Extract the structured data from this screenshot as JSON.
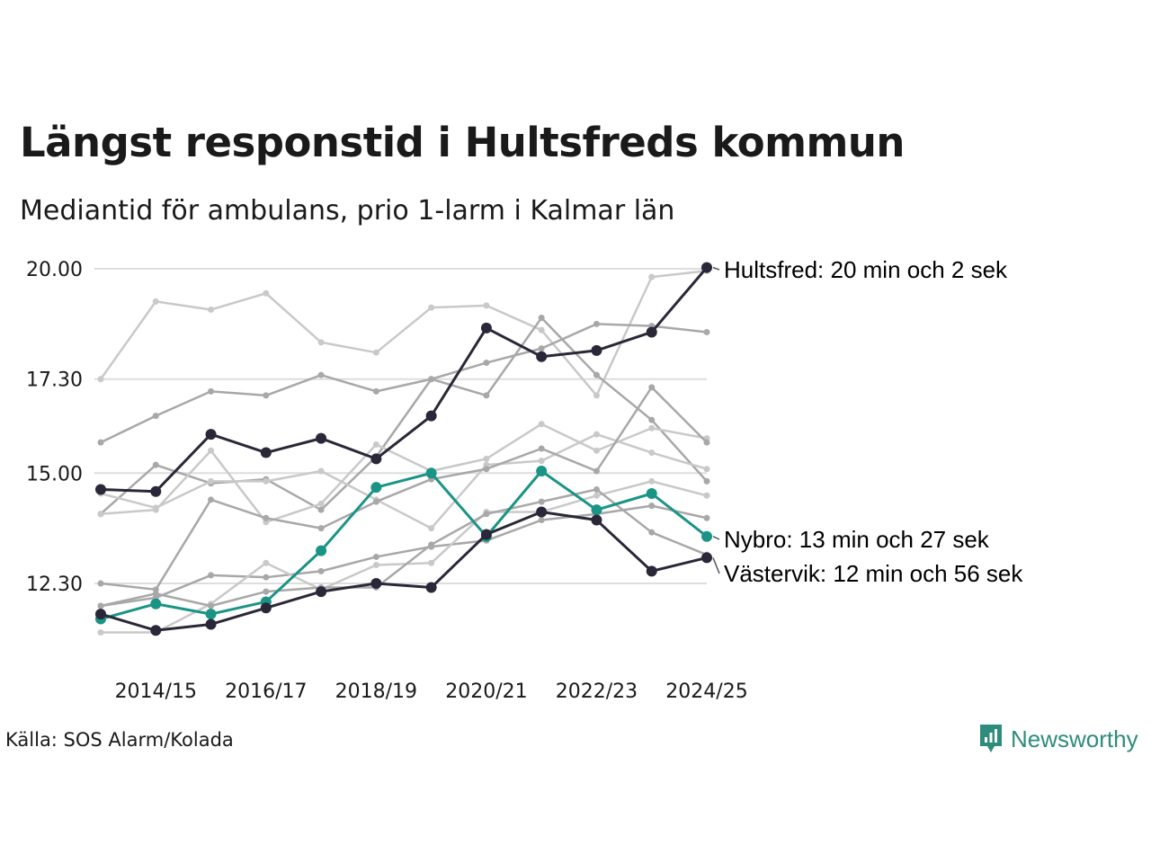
{
  "title": "Längst responstid i Hultsfreds kommun",
  "subtitle": "Mediantid för ambulans, prio 1-larm i Kalmar län",
  "source": "Källa: SOS Alarm/Kolada",
  "brand": "Newsworthy",
  "colors": {
    "hultsfred": "#2a2838",
    "nybro": "#1a9485",
    "vastervik": "#2a2838",
    "grey_light": "#c9c9c9",
    "grey_dark": "#a8a8a8",
    "grid": "#dedede",
    "brand": "#2e8c7c"
  },
  "chart_data": {
    "type": "line",
    "x": [
      "2013/14",
      "2014/15",
      "2015/16",
      "2016/17",
      "2017/18",
      "2018/19",
      "2019/20",
      "2020/21",
      "2021/22",
      "2022/23",
      "2023/24",
      "2024/25"
    ],
    "x_tick_labels": [
      "2014/15",
      "2016/17",
      "2018/19",
      "2020/21",
      "2022/23",
      "2024/25"
    ],
    "y_ticks": [
      12.3,
      15.0,
      17.3,
      20.0
    ],
    "y_tick_labels": [
      "12.30",
      "15.00",
      "17.30",
      "20.00"
    ],
    "ylim": [
      11.0,
      20.0
    ],
    "grid": "horizontal",
    "series": [
      {
        "label": "Hultsfred: 20 min och 2 sek",
        "highlight": "hultsfred",
        "values": [
          14.6,
          14.55,
          15.95,
          15.5,
          15.85,
          15.35,
          16.4,
          18.55,
          17.85,
          18.0,
          18.45,
          20.03
        ]
      },
      {
        "label": "Nybro: 13 min och 27 sek",
        "highlight": "nybro",
        "values": [
          11.43,
          11.8,
          11.55,
          11.85,
          13.1,
          14.65,
          15.0,
          13.45,
          15.05,
          14.1,
          14.5,
          13.45
        ]
      },
      {
        "label": "Västervik: 12 min och 56 sek",
        "highlight": "vastervik",
        "values": [
          11.55,
          11.15,
          11.3,
          11.7,
          12.1,
          12.3,
          12.2,
          13.5,
          14.05,
          13.85,
          12.6,
          12.93
        ]
      },
      {
        "tone": "grey_light",
        "values": [
          17.3,
          19.2,
          19.0,
          19.4,
          18.2,
          17.95,
          19.05,
          19.1,
          18.5,
          16.9,
          19.8,
          19.95
        ]
      },
      {
        "tone": "grey_dark",
        "values": [
          15.75,
          16.4,
          17.0,
          16.9,
          17.4,
          17.0,
          17.3,
          17.7,
          18.05,
          18.65,
          18.6,
          18.45
        ]
      },
      {
        "tone": "grey_dark",
        "values": [
          14.0,
          15.2,
          14.75,
          14.85,
          14.1,
          15.4,
          17.3,
          16.9,
          18.8,
          17.4,
          16.3,
          14.8
        ]
      },
      {
        "tone": "grey_light",
        "values": [
          14.0,
          14.1,
          15.55,
          13.8,
          14.25,
          15.7,
          15.05,
          15.35,
          16.2,
          15.55,
          16.1,
          15.85
        ]
      },
      {
        "tone": "grey_light",
        "values": [
          14.5,
          14.15,
          14.8,
          14.8,
          15.05,
          14.35,
          13.65,
          15.2,
          15.3,
          15.95,
          15.5,
          15.1
        ]
      },
      {
        "tone": "grey_dark",
        "values": [
          12.3,
          12.15,
          14.35,
          13.9,
          13.65,
          14.3,
          14.85,
          15.1,
          15.6,
          15.05,
          17.1,
          15.75
        ]
      },
      {
        "tone": "grey_dark",
        "values": [
          11.75,
          11.95,
          12.5,
          12.45,
          12.6,
          12.95,
          13.2,
          13.35,
          13.85,
          14.0,
          14.2,
          13.9
        ]
      },
      {
        "tone": "grey_light",
        "values": [
          11.1,
          11.1,
          11.8,
          12.8,
          12.15,
          12.75,
          12.8,
          14.05,
          14.05,
          14.45,
          14.8,
          14.45
        ]
      },
      {
        "tone": "grey_dark",
        "values": [
          11.75,
          12.05,
          11.75,
          12.1,
          12.2,
          12.2,
          13.25,
          14.0,
          14.3,
          14.6,
          13.55,
          13.0
        ]
      }
    ]
  }
}
